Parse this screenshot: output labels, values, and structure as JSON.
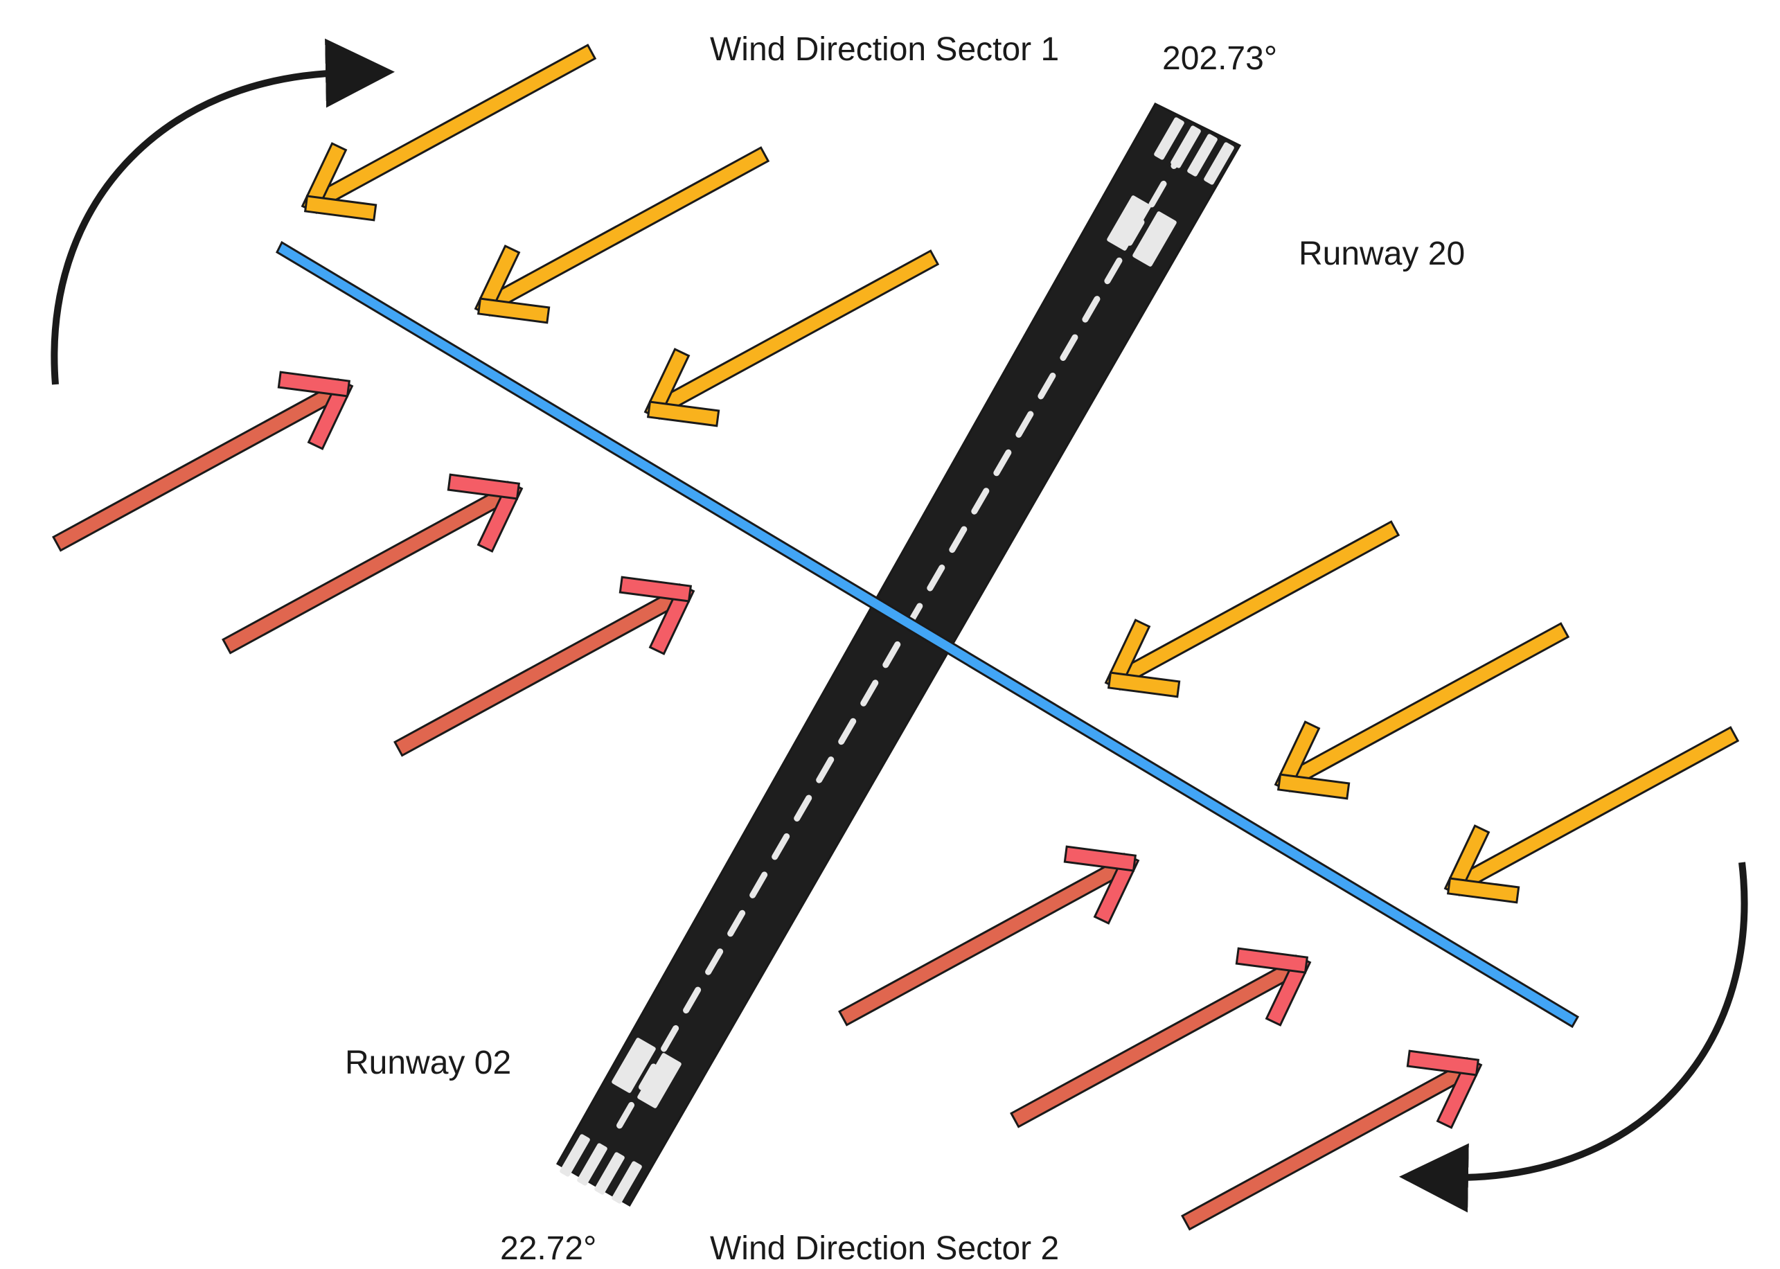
{
  "labels": {
    "sector1": "Wind Direction Sector 1",
    "sector2": "Wind Direction Sector 2",
    "runway20": "Runway 20",
    "runway02": "Runway 02",
    "angle_top": "202.73°",
    "angle_bottom": "22.72°"
  },
  "colors": {
    "background": "#ffffff",
    "runway": "#1e1e1e",
    "runway_marking": "#e8e8e8",
    "crosswind_line": "#42a5f5",
    "sector1_arrow": "#f9b21d",
    "sector2_arrow_shaft": "#e0664f",
    "sector2_arrow_head": "#f45d66",
    "outline": "#1a1a1a",
    "rotation_arrow": "#1a1a1a"
  },
  "wind_sectors": [
    {
      "name": "Wind Direction Sector 1",
      "arrow_count": 6,
      "direction": "toward lower-left"
    },
    {
      "name": "Wind Direction Sector 2",
      "arrow_count": 6,
      "direction": "toward upper-right"
    }
  ],
  "runway": {
    "headings": [
      "Runway 20",
      "Runway 02"
    ],
    "angles": [
      "202.73°",
      "22.72°"
    ]
  }
}
